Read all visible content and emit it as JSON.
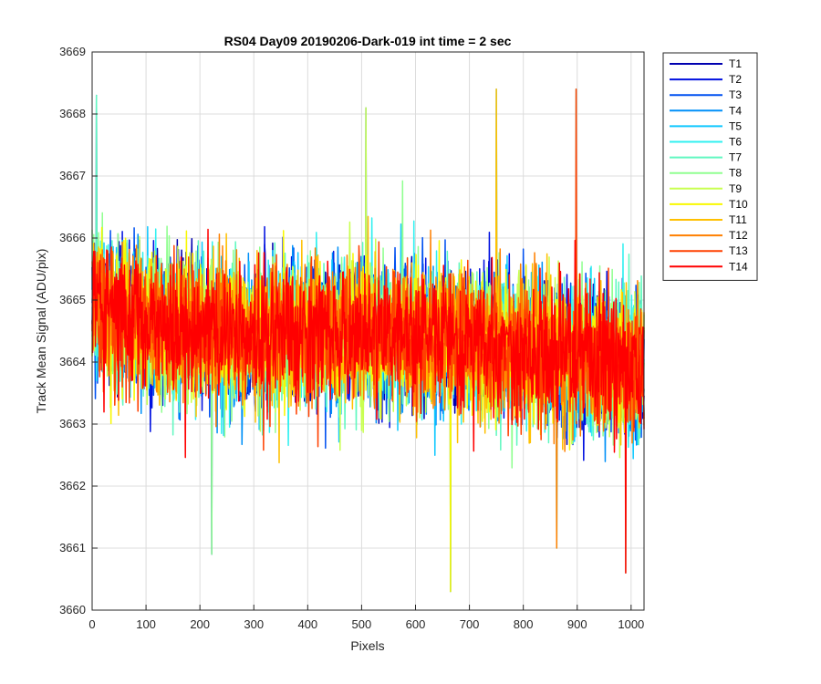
{
  "chart_data": {
    "type": "line",
    "title": "RS04 Day09 20190206-Dark-019 int time = 2 sec",
    "xlabel": "Pixels",
    "ylabel": "Track Mean Signal (ADU/pix)",
    "xlim": [
      0,
      1024
    ],
    "ylim": [
      3660,
      3669
    ],
    "xticks": [
      0,
      100,
      200,
      300,
      400,
      500,
      600,
      700,
      800,
      900,
      1000
    ],
    "yticks": [
      3660,
      3661,
      3662,
      3663,
      3664,
      3665,
      3666,
      3667,
      3668,
      3669
    ],
    "grid": true,
    "legend_position": "outside-top-right",
    "series": [
      {
        "name": "T1",
        "color": "#0000B0",
        "trend": [
          [
            0,
            3665.0
          ],
          [
            100,
            3664.6
          ],
          [
            300,
            3664.4
          ],
          [
            500,
            3664.5
          ],
          [
            700,
            3664.3
          ],
          [
            900,
            3664.1
          ],
          [
            1024,
            3663.9
          ]
        ],
        "noise": 1.0
      },
      {
        "name": "T2",
        "color": "#0010E0",
        "trend": [
          [
            0,
            3665.0
          ],
          [
            100,
            3664.6
          ],
          [
            300,
            3664.4
          ],
          [
            500,
            3664.5
          ],
          [
            700,
            3664.3
          ],
          [
            900,
            3664.1
          ],
          [
            1024,
            3663.9
          ]
        ],
        "noise": 1.0
      },
      {
        "name": "T3",
        "color": "#0050F0",
        "trend": [
          [
            0,
            3665.0
          ],
          [
            100,
            3664.6
          ],
          [
            300,
            3664.4
          ],
          [
            500,
            3664.5
          ],
          [
            700,
            3664.3
          ],
          [
            900,
            3664.1
          ],
          [
            1024,
            3663.9
          ]
        ],
        "noise": 1.0
      },
      {
        "name": "T4",
        "color": "#0090F8",
        "trend": [
          [
            0,
            3665.0
          ],
          [
            100,
            3664.6
          ],
          [
            300,
            3664.4
          ],
          [
            500,
            3664.5
          ],
          [
            700,
            3664.3
          ],
          [
            900,
            3664.1
          ],
          [
            1024,
            3663.9
          ]
        ],
        "noise": 1.0
      },
      {
        "name": "T5",
        "color": "#10C8FF",
        "trend": [
          [
            0,
            3665.0
          ],
          [
            100,
            3664.6
          ],
          [
            300,
            3664.4
          ],
          [
            500,
            3664.5
          ],
          [
            700,
            3664.3
          ],
          [
            900,
            3664.1
          ],
          [
            1024,
            3663.9
          ]
        ],
        "noise": 1.0
      },
      {
        "name": "T6",
        "color": "#30F0F0",
        "trend": [
          [
            0,
            3665.0
          ],
          [
            100,
            3664.6
          ],
          [
            300,
            3664.4
          ],
          [
            500,
            3664.5
          ],
          [
            700,
            3664.3
          ],
          [
            900,
            3664.1
          ],
          [
            1024,
            3663.9
          ]
        ],
        "noise": 1.0
      },
      {
        "name": "T7",
        "color": "#60F8C0",
        "trend": [
          [
            0,
            3665.0
          ],
          [
            100,
            3664.6
          ],
          [
            300,
            3664.4
          ],
          [
            500,
            3664.5
          ],
          [
            700,
            3664.3
          ],
          [
            900,
            3664.1
          ],
          [
            1024,
            3663.9
          ]
        ],
        "noise": 1.0
      },
      {
        "name": "T8",
        "color": "#90FF90",
        "trend": [
          [
            0,
            3665.0
          ],
          [
            100,
            3664.6
          ],
          [
            300,
            3664.4
          ],
          [
            500,
            3664.5
          ],
          [
            700,
            3664.3
          ],
          [
            900,
            3664.1
          ],
          [
            1024,
            3663.9
          ]
        ],
        "noise": 1.0
      },
      {
        "name": "T9",
        "color": "#C8FF50",
        "trend": [
          [
            0,
            3665.0
          ],
          [
            100,
            3664.6
          ],
          [
            300,
            3664.4
          ],
          [
            500,
            3664.5
          ],
          [
            700,
            3664.3
          ],
          [
            900,
            3664.1
          ],
          [
            1024,
            3663.9
          ]
        ],
        "noise": 1.0
      },
      {
        "name": "T10",
        "color": "#F8F800",
        "trend": [
          [
            0,
            3665.0
          ],
          [
            100,
            3664.6
          ],
          [
            300,
            3664.4
          ],
          [
            500,
            3664.5
          ],
          [
            700,
            3664.3
          ],
          [
            900,
            3664.1
          ],
          [
            1024,
            3663.9
          ]
        ],
        "noise": 1.0
      },
      {
        "name": "T11",
        "color": "#FFC000",
        "trend": [
          [
            0,
            3665.0
          ],
          [
            100,
            3664.6
          ],
          [
            300,
            3664.4
          ],
          [
            500,
            3664.5
          ],
          [
            700,
            3664.3
          ],
          [
            900,
            3664.1
          ],
          [
            1024,
            3663.9
          ]
        ],
        "noise": 1.0
      },
      {
        "name": "T12",
        "color": "#FF8000",
        "trend": [
          [
            0,
            3665.0
          ],
          [
            100,
            3664.6
          ],
          [
            300,
            3664.4
          ],
          [
            500,
            3664.5
          ],
          [
            700,
            3664.3
          ],
          [
            900,
            3664.1
          ],
          [
            1024,
            3663.9
          ]
        ],
        "noise": 1.0
      },
      {
        "name": "T13",
        "color": "#FF4000",
        "trend": [
          [
            0,
            3665.0
          ],
          [
            100,
            3664.6
          ],
          [
            300,
            3664.4
          ],
          [
            500,
            3664.5
          ],
          [
            700,
            3664.3
          ],
          [
            900,
            3664.1
          ],
          [
            1024,
            3663.9
          ]
        ],
        "noise": 1.0
      },
      {
        "name": "T14",
        "color": "#FF0000",
        "trend": [
          [
            0,
            3665.0
          ],
          [
            100,
            3664.6
          ],
          [
            300,
            3664.4
          ],
          [
            500,
            3664.5
          ],
          [
            700,
            3664.3
          ],
          [
            900,
            3664.1
          ],
          [
            1024,
            3663.9
          ]
        ],
        "noise": 1.0
      }
    ],
    "annotated_extremes": [
      {
        "x": 8,
        "y": 3668.3
      },
      {
        "x": 222,
        "y": 3660.9
      },
      {
        "x": 508,
        "y": 3668.1
      },
      {
        "x": 665,
        "y": 3660.3
      },
      {
        "x": 750,
        "y": 3668.4
      },
      {
        "x": 862,
        "y": 3661.0
      },
      {
        "x": 898,
        "y": 3668.4
      },
      {
        "x": 990,
        "y": 3660.6
      }
    ]
  }
}
